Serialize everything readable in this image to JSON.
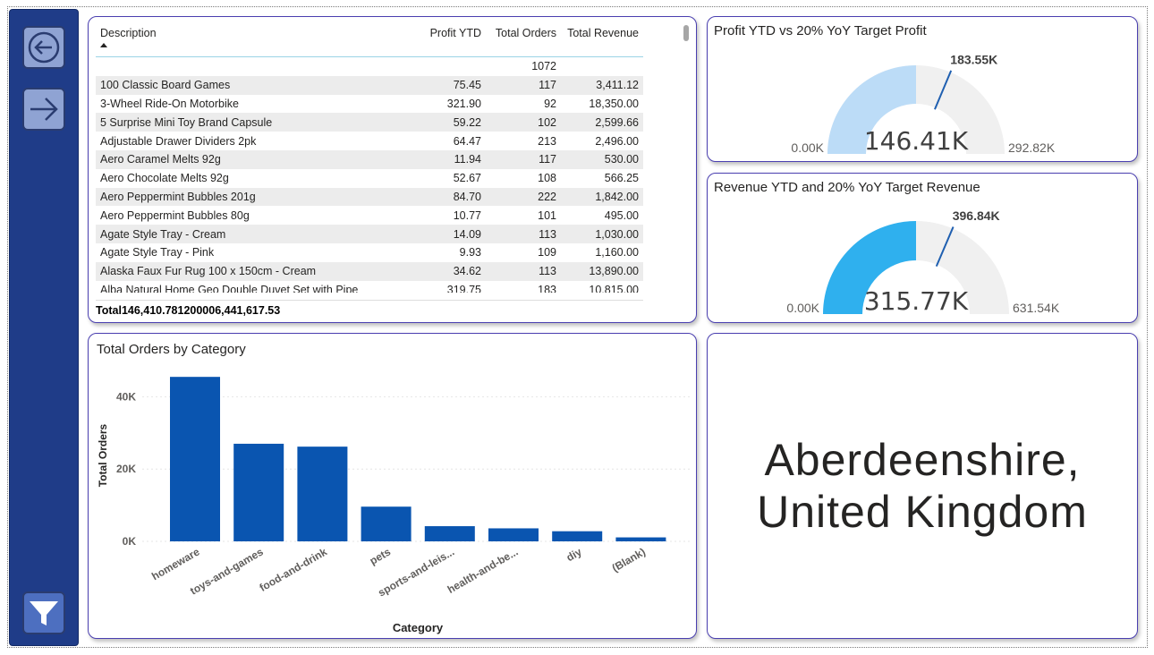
{
  "nav": {
    "back_icon": "arrow-left-circle-icon",
    "forward_icon": "arrow-right-icon",
    "filter_icon": "funnel-icon"
  },
  "table": {
    "headers": [
      "Description",
      "Profit YTD",
      "Total Orders",
      "Total Revenue"
    ],
    "blank_row": {
      "description": "",
      "profit": "",
      "orders": "1072",
      "revenue": ""
    },
    "rows": [
      {
        "description": "100 Classic Board Games",
        "profit": "75.45",
        "orders": "117",
        "revenue": "3,411.12"
      },
      {
        "description": "3-Wheel Ride-On Motorbike",
        "profit": "321.90",
        "orders": "92",
        "revenue": "18,350.00"
      },
      {
        "description": "5 Surprise Mini Toy Brand Capsule",
        "profit": "59.22",
        "orders": "102",
        "revenue": "2,599.66"
      },
      {
        "description": "Adjustable Drawer Dividers 2pk",
        "profit": "64.47",
        "orders": "213",
        "revenue": "2,496.00"
      },
      {
        "description": "Aero Caramel Melts 92g",
        "profit": "11.94",
        "orders": "117",
        "revenue": "530.00"
      },
      {
        "description": "Aero Chocolate Melts 92g",
        "profit": "52.67",
        "orders": "108",
        "revenue": "566.25"
      },
      {
        "description": "Aero Peppermint Bubbles 201g",
        "profit": "84.70",
        "orders": "222",
        "revenue": "1,842.00"
      },
      {
        "description": "Aero Peppermint Bubbles 80g",
        "profit": "10.77",
        "orders": "101",
        "revenue": "495.00"
      },
      {
        "description": "Agate Style Tray - Cream",
        "profit": "14.09",
        "orders": "113",
        "revenue": "1,030.00"
      },
      {
        "description": "Agate Style Tray - Pink",
        "profit": "9.93",
        "orders": "109",
        "revenue": "1,160.00"
      },
      {
        "description": "Alaska Faux Fur Rug 100 x 150cm - Cream",
        "profit": "34.62",
        "orders": "113",
        "revenue": "13,890.00"
      },
      {
        "description": "Alba Natural Home Geo Double Duvet Set with Pipe",
        "profit": "319.75",
        "orders": "183",
        "revenue": "10,815.00"
      }
    ],
    "total": {
      "label": "Total",
      "profit": "146,410.78",
      "orders": "120000",
      "revenue": "6,441,617.53"
    }
  },
  "gauge_profit": {
    "title": "Profit YTD vs 20% YoY Target Profit",
    "value_label": "146.41K",
    "min_label": "0.00K",
    "max_label": "292.82K",
    "target_label": "183.55K",
    "value": 146.41,
    "min": 0,
    "max": 292.82,
    "target": 183.55,
    "fill_color": "#bcdcf7",
    "track_color": "#f0f0f0",
    "target_color": "#1f5fb0"
  },
  "gauge_revenue": {
    "title": "Revenue YTD and 20% YoY Target Revenue",
    "value_label": "315.77K",
    "min_label": "0.00K",
    "max_label": "631.54K",
    "target_label": "396.84K",
    "value": 315.77,
    "min": 0,
    "max": 631.54,
    "target": 396.84,
    "fill_color": "#2fb0ee",
    "track_color": "#f0f0f0",
    "target_color": "#1f5fb0"
  },
  "bar_chart": {
    "title": "Total Orders by Category",
    "chart_data": {
      "type": "bar",
      "title": "Total Orders by Category",
      "xlabel": "Category",
      "ylabel": "Total Orders",
      "categories": [
        "homeware",
        "toys-and-games",
        "food-and-drink",
        "pets",
        "sports-and-leis...",
        "health-and-be...",
        "diy",
        "(Blank)"
      ],
      "values": [
        45500,
        27000,
        26200,
        9600,
        4200,
        3600,
        2800,
        1100
      ],
      "ylim": [
        0,
        50000
      ],
      "yticks": [
        0,
        20000,
        40000
      ],
      "ytick_labels": [
        "0K",
        "20K",
        "40K"
      ],
      "grid": true,
      "bar_color": "#0a55b0"
    }
  },
  "location": {
    "line1": "Aberdeenshire,",
    "line2": "United Kingdom"
  }
}
